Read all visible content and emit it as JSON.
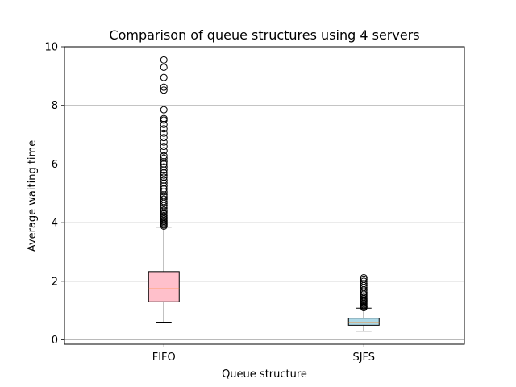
{
  "chart_data": {
    "type": "box",
    "title": "Comparison of queue structures using 4 servers",
    "xlabel": "Queue structure",
    "ylabel": "Average waiting time",
    "ylim": [
      -0.15,
      10
    ],
    "yticks": [
      0,
      2,
      4,
      6,
      8,
      10
    ],
    "grid": "y",
    "categories": [
      "FIFO",
      "SJFS"
    ],
    "boxes": [
      {
        "label": "FIFO",
        "fill": "#ffc0cb",
        "median_color": "#ff7f0e",
        "whisker_low": 0.58,
        "q1": 1.3,
        "median": 1.74,
        "q3": 2.33,
        "whisker_high": 3.85,
        "outliers": [
          3.88,
          3.92,
          3.96,
          4.0,
          4.04,
          4.08,
          4.13,
          4.18,
          4.24,
          4.3,
          4.36,
          4.42,
          4.5,
          4.58,
          4.66,
          4.72,
          4.8,
          4.88,
          4.95,
          5.05,
          5.15,
          5.25,
          5.35,
          5.45,
          5.55,
          5.62,
          5.7,
          5.8,
          5.9,
          6.0,
          6.08,
          6.2,
          6.28,
          6.45,
          6.6,
          6.75,
          6.9,
          7.05,
          7.2,
          7.35,
          7.5,
          7.55,
          7.85,
          8.52,
          8.62,
          8.95,
          9.3,
          9.55
        ]
      },
      {
        "label": "SJFS",
        "fill": "#add8e6",
        "median_color": "#ff7f0e",
        "whisker_low": 0.3,
        "q1": 0.5,
        "median": 0.6,
        "q3": 0.74,
        "whisker_high": 1.08,
        "outliers": [
          1.1,
          1.13,
          1.16,
          1.2,
          1.24,
          1.28,
          1.32,
          1.36,
          1.4,
          1.45,
          1.5,
          1.56,
          1.62,
          1.7,
          1.78,
          1.85,
          1.92,
          2.0,
          2.07,
          2.12
        ]
      }
    ]
  }
}
